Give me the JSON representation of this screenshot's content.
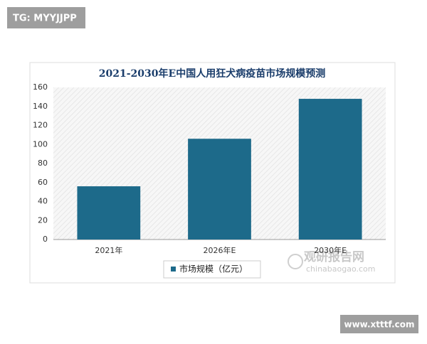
{
  "watermark_top": "TG: MYYJJPP",
  "watermark_bottom": "www.xtttf.com",
  "source_logo": {
    "name": "观研报告网",
    "url": "chinabaogao.com"
  },
  "chart_data": {
    "type": "bar",
    "title": "2021-2030年E中国人用狂犬病疫苗市场规模预测",
    "categories": [
      "2021年",
      "2026年E",
      "2030年E"
    ],
    "series": [
      {
        "name": "市场规模（亿元）",
        "color": "#1d6a8a",
        "values": [
          56,
          106,
          148
        ]
      }
    ],
    "ylim": [
      0,
      160
    ],
    "yticks": [
      0,
      20,
      40,
      60,
      80,
      100,
      120,
      140,
      160
    ],
    "legend": "bottom"
  }
}
